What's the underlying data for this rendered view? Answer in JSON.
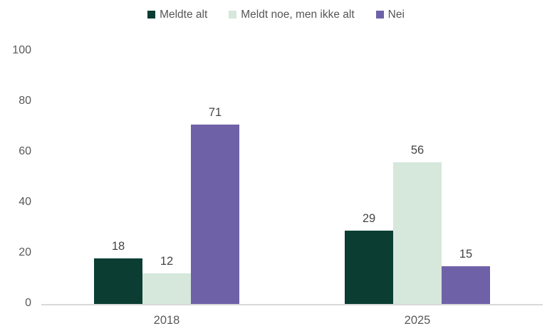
{
  "chart_data": {
    "type": "bar",
    "title": "",
    "xlabel": "",
    "ylabel": "",
    "categories": [
      "2018",
      "2025"
    ],
    "series": [
      {
        "name": "Meldte alt",
        "color": "#0b3d33",
        "values": [
          18,
          29
        ]
      },
      {
        "name": "Meldt noe, men ikke alt",
        "color": "#d6e7db",
        "values": [
          12,
          56
        ]
      },
      {
        "name": "Nei",
        "color": "#6f61a8",
        "values": [
          71,
          15
        ]
      }
    ],
    "ylim": [
      0,
      100
    ],
    "yticks": [
      0,
      20,
      40,
      60,
      80,
      100
    ],
    "grid": false,
    "legend_position": "top",
    "value_labels": true,
    "colors": {
      "axis_line": "#d9d9d9",
      "tick_label": "#595959",
      "value_label": "#454545",
      "legend_label": "#565656",
      "background": "#ffffff"
    }
  }
}
